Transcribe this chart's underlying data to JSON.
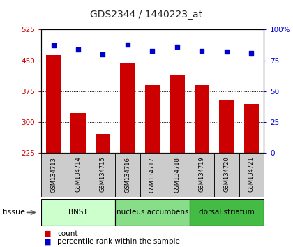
{
  "title": "GDS2344 / 1440223_at",
  "samples": [
    "GSM134713",
    "GSM134714",
    "GSM134715",
    "GSM134716",
    "GSM134717",
    "GSM134718",
    "GSM134719",
    "GSM134720",
    "GSM134721"
  ],
  "counts": [
    463,
    322,
    272,
    445,
    390,
    415,
    390,
    355,
    345
  ],
  "percentiles": [
    87,
    84,
    80,
    88,
    83,
    86,
    83,
    82,
    81
  ],
  "ylim_left": [
    225,
    525
  ],
  "ylim_right": [
    0,
    100
  ],
  "yticks_left": [
    225,
    300,
    375,
    450,
    525
  ],
  "yticks_right": [
    0,
    25,
    50,
    75,
    100
  ],
  "bar_color": "#cc0000",
  "dot_color": "#0000cc",
  "groups": [
    {
      "label": "BNST",
      "start": 0,
      "end": 2,
      "color": "#ccffcc"
    },
    {
      "label": "nucleus accumbens",
      "start": 3,
      "end": 5,
      "color": "#88dd88"
    },
    {
      "label": "dorsal striatum",
      "start": 6,
      "end": 8,
      "color": "#44bb44"
    }
  ],
  "tissue_label": "tissue",
  "legend_count": "count",
  "legend_pct": "percentile rank within the sample",
  "title_color": "#222222",
  "left_axis_color": "#cc0000",
  "right_axis_color": "#0000cc",
  "bg_color": "#ffffff"
}
